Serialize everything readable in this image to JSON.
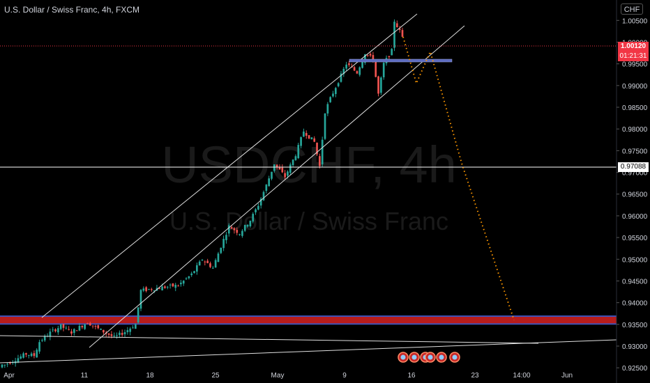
{
  "header": {
    "title": "U.S. Dollar / Swiss Franc, 4h, FXCM",
    "currency_button": "CHF"
  },
  "watermark": {
    "symbol": "USDCHF, 4h",
    "name": "U.S. Dollar / Swiss Franc"
  },
  "price_tags": {
    "current_price": "1.00120",
    "countdown": "01:21:31",
    "horizontal_line": "0.97088"
  },
  "colors": {
    "background": "#000000",
    "candle_up": "#26a69a",
    "candle_down": "#ef5350",
    "support_zone": "#b71c1c",
    "support_zone_border": "#3f51b5",
    "resistance_line": "#5c6bc0",
    "projection": "#ff9800",
    "current_price": "#f23645"
  },
  "chart_data": {
    "type": "candlestick",
    "y_axis": {
      "range": [
        0.9215,
        1.0097
      ],
      "ticks": [
        "1.00500",
        "1.00000",
        "0.99500",
        "0.99000",
        "0.98500",
        "0.98000",
        "0.97500",
        "0.97000",
        "0.96500",
        "0.96000",
        "0.95500",
        "0.95000",
        "0.94500",
        "0.94000",
        "0.93500",
        "0.93000",
        "0.92500"
      ]
    },
    "x_axis": {
      "ticks": [
        "Apr",
        "11",
        "18",
        "25",
        "May",
        "9",
        "16",
        "23",
        "14:00",
        "Jun"
      ]
    },
    "current_price": 1.0012,
    "horizontal_line": 0.97088,
    "resistance_level": 0.9982,
    "support_zone": [
      0.9351,
      0.9369
    ],
    "price_path": [
      [
        0.9257,
        2
      ],
      [
        0.9282,
        8
      ],
      [
        0.9278,
        3
      ],
      [
        0.931,
        2
      ],
      [
        0.9331,
        4
      ],
      [
        0.9346,
        4
      ],
      [
        0.9332,
        4
      ],
      [
        0.9355,
        6
      ],
      [
        0.934,
        4
      ],
      [
        0.932,
        6
      ],
      [
        0.9333,
        4
      ],
      [
        0.935,
        4
      ],
      [
        0.9428,
        2
      ],
      [
        0.9435,
        8
      ],
      [
        0.944,
        6
      ],
      [
        0.9465,
        5
      ],
      [
        0.95,
        4
      ],
      [
        0.948,
        4
      ],
      [
        0.953,
        3
      ],
      [
        0.9576,
        3
      ],
      [
        0.956,
        4
      ],
      [
        0.959,
        4
      ],
      [
        0.9625,
        3
      ],
      [
        0.967,
        3
      ],
      [
        0.972,
        3
      ],
      [
        0.969,
        4
      ],
      [
        0.9741,
        4
      ],
      [
        0.9795,
        3
      ],
      [
        0.977,
        4
      ],
      [
        0.9714,
        2
      ],
      [
        0.984,
        2
      ],
      [
        0.987,
        2
      ],
      [
        0.991,
        3
      ],
      [
        0.995,
        3
      ],
      [
        0.993,
        4
      ],
      [
        0.9975,
        3
      ],
      [
        0.996,
        3
      ],
      [
        0.988,
        2
      ],
      [
        0.995,
        2
      ],
      [
        0.998,
        3
      ],
      [
        1.0049,
        1
      ],
      [
        1.0025,
        2
      ],
      [
        1.0012,
        1
      ]
    ],
    "projection_path": [
      1.0012,
      0.9905,
      0.9978,
      0.9721,
      0.936
    ]
  }
}
